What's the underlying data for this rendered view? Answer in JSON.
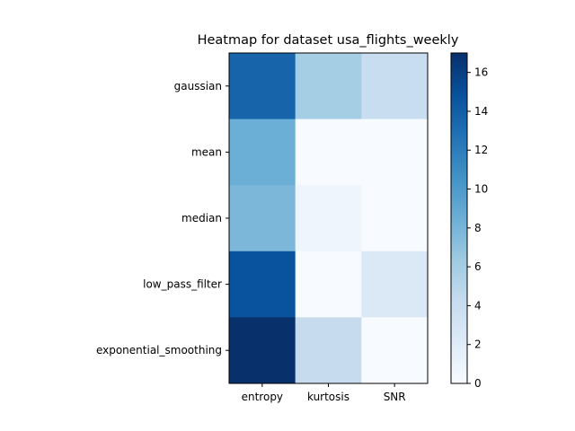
{
  "chart_data": {
    "type": "heatmap",
    "title": "Heatmap for dataset usa_flights_weekly",
    "xlabel": "",
    "ylabel": "",
    "columns": [
      "entropy",
      "kurtosis",
      "SNR"
    ],
    "rows": [
      "gaussian",
      "mean",
      "median",
      "low_pass_filter",
      "exponential_smoothing"
    ],
    "values": [
      [
        13.6,
        6.0,
        4.0
      ],
      [
        8.5,
        0.0,
        0.0
      ],
      [
        7.8,
        0.8,
        0.0
      ],
      [
        14.8,
        0.0,
        2.4
      ],
      [
        17.0,
        4.2,
        0.0
      ]
    ],
    "colorbar": {
      "min": 0,
      "max": 17,
      "ticks": [
        0,
        2,
        4,
        6,
        8,
        10,
        12,
        14,
        16
      ],
      "colormap": "Blues"
    }
  }
}
